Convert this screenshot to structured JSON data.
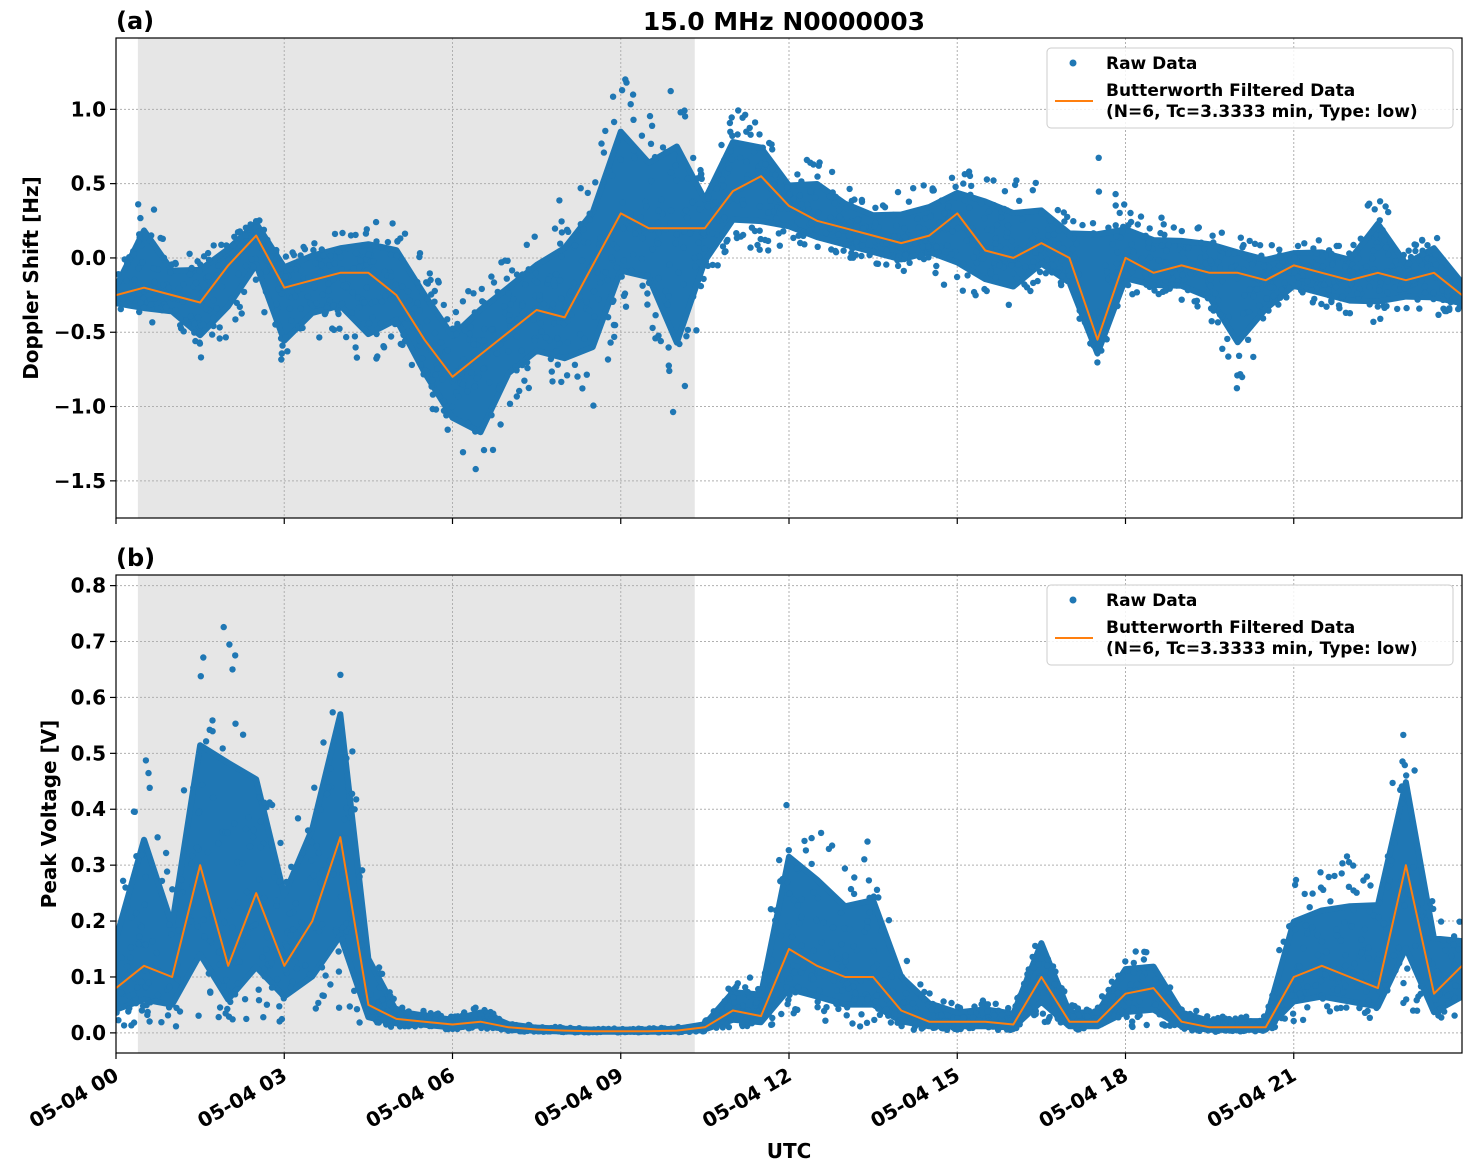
{
  "title": "15.0 MHz N0000003",
  "xlabel": "UTC",
  "x_tick_labels": [
    "05-04 00",
    "05-04 03",
    "05-04 06",
    "05-04 09",
    "05-04 12",
    "05-04 15",
    "05-04 18",
    "05-04 21"
  ],
  "x_ticks_hours": [
    0,
    3,
    6,
    9,
    12,
    15,
    18,
    21
  ],
  "colors": {
    "raw": "#1f77b4",
    "filtered": "#ff7f0e",
    "shade": "#e6e6e6",
    "grid": "#b0b0b0"
  },
  "chart_data": [
    {
      "panel_label": "(a)",
      "type": "scatter+line",
      "ylabel": "Doppler Shift [Hz]",
      "xlim_hours": [
        0,
        24
      ],
      "ylim": [
        -1.75,
        1.48
      ],
      "y_ticks": [
        1.0,
        0.5,
        0.0,
        -0.5,
        -1.0,
        -1.5
      ],
      "y_tick_labels": [
        "1.0",
        "0.5",
        "0.0",
        "−0.5",
        "−1.0",
        "−1.5"
      ],
      "grid": true,
      "shaded_span_hours": [
        0.39,
        10.32
      ],
      "legend": {
        "placement": "top-right",
        "entries": [
          "Raw Data",
          "Butterworth Filtered Data",
          "(N=6, Tc=3.3333 min, Type: low)"
        ]
      },
      "x_hours": [
        0,
        0.5,
        1,
        1.5,
        2,
        2.5,
        3,
        3.5,
        4,
        4.5,
        5,
        5.5,
        6,
        6.5,
        7,
        7.5,
        8,
        8.5,
        9,
        9.5,
        10,
        10.5,
        11,
        11.5,
        12,
        12.5,
        13,
        13.5,
        14,
        14.5,
        15,
        15.5,
        16,
        16.5,
        17,
        17.5,
        18,
        18.5,
        19,
        19.5,
        20,
        20.5,
        21,
        21.5,
        22,
        22.5,
        23,
        23.5,
        24
      ],
      "filtered": [
        -0.25,
        -0.2,
        -0.25,
        -0.3,
        -0.05,
        0.15,
        -0.2,
        -0.15,
        -0.1,
        -0.1,
        -0.25,
        -0.55,
        -0.8,
        -0.65,
        -0.5,
        -0.35,
        -0.4,
        -0.05,
        0.3,
        0.2,
        0.2,
        0.2,
        0.45,
        0.55,
        0.35,
        0.25,
        0.2,
        0.15,
        0.1,
        0.15,
        0.3,
        0.05,
        0.0,
        0.1,
        0.0,
        -0.55,
        0.0,
        -0.1,
        -0.05,
        -0.1,
        -0.1,
        -0.15,
        -0.05,
        -0.1,
        -0.15,
        -0.1,
        -0.15,
        -0.1,
        -0.25
      ],
      "raw_min": [
        -0.35,
        -0.45,
        -0.45,
        -0.7,
        -0.55,
        -0.2,
        -0.85,
        -0.55,
        -0.5,
        -0.85,
        -0.55,
        -0.95,
        -1.3,
        -1.6,
        -1.0,
        -0.85,
        -0.9,
        -1.05,
        -0.4,
        -0.4,
        -1.2,
        -0.2,
        0.1,
        0.0,
        0.1,
        0.05,
        0.0,
        -0.05,
        -0.1,
        -0.05,
        -0.3,
        -0.3,
        -0.35,
        -0.15,
        -0.3,
        -0.72,
        -0.25,
        -0.25,
        -0.3,
        -0.4,
        -0.95,
        -0.5,
        -0.3,
        -0.35,
        -0.4,
        -0.45,
        -0.35,
        -0.4,
        -0.35
      ],
      "raw_max": [
        -0.15,
        0.5,
        0.05,
        0.1,
        0.15,
        0.3,
        0.05,
        0.15,
        0.2,
        0.25,
        0.3,
        0.0,
        -0.3,
        -0.1,
        0.05,
        0.2,
        0.45,
        0.6,
        1.3,
        1.0,
        1.2,
        0.55,
        1.05,
        0.9,
        0.6,
        0.7,
        0.5,
        0.4,
        0.45,
        0.5,
        0.55,
        0.65,
        0.55,
        0.5,
        0.3,
        0.74,
        0.35,
        0.3,
        0.25,
        0.25,
        0.15,
        0.1,
        0.1,
        0.15,
        0.1,
        0.5,
        0.05,
        0.2,
        -0.1
      ]
    },
    {
      "panel_label": "(b)",
      "type": "scatter+line",
      "ylabel": "Peak Voltage [V]",
      "xlim_hours": [
        0,
        24
      ],
      "ylim": [
        -0.036,
        0.819
      ],
      "y_ticks": [
        0.8,
        0.7,
        0.6,
        0.5,
        0.4,
        0.3,
        0.2,
        0.1,
        0.0
      ],
      "y_tick_labels": [
        "0.8",
        "0.7",
        "0.6",
        "0.5",
        "0.4",
        "0.3",
        "0.2",
        "0.1",
        "0.0"
      ],
      "grid": true,
      "shaded_span_hours": [
        0.39,
        10.32
      ],
      "legend": {
        "placement": "top-right",
        "entries": [
          "Raw Data",
          "Butterworth Filtered Data",
          "(N=6, Tc=3.3333 min, Type: low)"
        ]
      },
      "x_hours": [
        0,
        0.5,
        1,
        1.5,
        2,
        2.5,
        3,
        3.5,
        4,
        4.5,
        5,
        5.5,
        6,
        6.5,
        7,
        7.5,
        8,
        8.5,
        9,
        9.5,
        10,
        10.5,
        11,
        11.5,
        12,
        12.5,
        13,
        13.5,
        14,
        14.5,
        15,
        15.5,
        16,
        16.5,
        17,
        17.5,
        18,
        18.5,
        19,
        19.5,
        20,
        20.5,
        21,
        21.5,
        22,
        22.5,
        23,
        23.5,
        24
      ],
      "filtered": [
        0.08,
        0.12,
        0.1,
        0.3,
        0.12,
        0.25,
        0.12,
        0.2,
        0.35,
        0.05,
        0.025,
        0.02,
        0.015,
        0.02,
        0.01,
        0.006,
        0.004,
        0.003,
        0.003,
        0.003,
        0.004,
        0.01,
        0.04,
        0.03,
        0.15,
        0.12,
        0.1,
        0.1,
        0.04,
        0.02,
        0.02,
        0.02,
        0.015,
        0.1,
        0.02,
        0.02,
        0.07,
        0.08,
        0.02,
        0.01,
        0.01,
        0.01,
        0.1,
        0.12,
        0.1,
        0.08,
        0.3,
        0.07,
        0.12
      ],
      "raw_min": [
        0.01,
        0.01,
        0.01,
        0.01,
        0.01,
        0.01,
        0.02,
        0.02,
        0.03,
        0.01,
        0.01,
        0.01,
        0.005,
        0.008,
        0.003,
        0.002,
        0.001,
        0.001,
        0.001,
        0.001,
        0.001,
        0.003,
        0.01,
        0.01,
        0.02,
        0.02,
        0.01,
        0.01,
        0.005,
        0.005,
        0.005,
        0.005,
        0.005,
        0.02,
        0.005,
        0.005,
        0.01,
        0.01,
        0.005,
        0.002,
        0.002,
        0.002,
        0.02,
        0.02,
        0.02,
        0.02,
        0.03,
        0.01,
        0.02
      ],
      "raw_max": [
        0.24,
        0.53,
        0.27,
        0.69,
        0.78,
        0.62,
        0.35,
        0.5,
        0.75,
        0.2,
        0.05,
        0.04,
        0.03,
        0.05,
        0.02,
        0.012,
        0.01,
        0.008,
        0.008,
        0.008,
        0.01,
        0.02,
        0.1,
        0.1,
        0.45,
        0.4,
        0.33,
        0.35,
        0.15,
        0.08,
        0.05,
        0.06,
        0.05,
        0.21,
        0.05,
        0.05,
        0.15,
        0.15,
        0.05,
        0.03,
        0.03,
        0.03,
        0.28,
        0.3,
        0.33,
        0.35,
        0.57,
        0.25,
        0.2
      ]
    }
  ]
}
